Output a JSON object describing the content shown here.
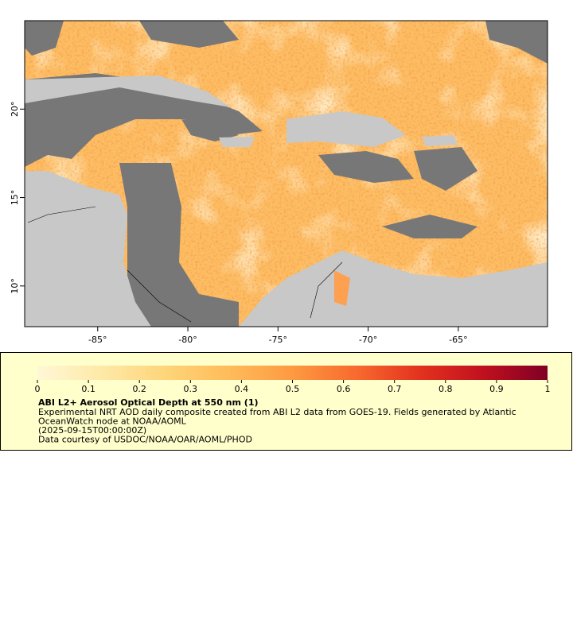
{
  "map": {
    "xaxis": {
      "lim": [
        -89.05,
        -60.05
      ],
      "ticks": [
        {
          "value": -85,
          "label": "-85°"
        },
        {
          "value": -80,
          "label": "-80°"
        },
        {
          "value": -75,
          "label": "-75°"
        },
        {
          "value": -70,
          "label": "-70°"
        },
        {
          "value": -65,
          "label": "-65°"
        }
      ]
    },
    "yaxis": {
      "lim": [
        7.7,
        25
      ],
      "ticks": [
        {
          "value": 10,
          "label": "10°"
        },
        {
          "value": 15,
          "label": "15°"
        },
        {
          "value": 20,
          "label": "20°"
        }
      ]
    }
  },
  "colorbar": {
    "lim": [
      0,
      1
    ],
    "ticks": [
      0,
      0.1,
      0.2,
      0.3,
      0.4,
      0.5,
      0.6,
      0.7,
      0.8,
      0.9,
      1
    ],
    "colors": [
      "#fff7d6",
      "#fee9a8",
      "#fed57a",
      "#febc5a",
      "#fd9a42",
      "#f86a2e",
      "#e3321e",
      "#c0101f",
      "#7f0025"
    ]
  },
  "legend": {
    "title": "ABI L2+ Aerosol Optical Depth at 550 nm (1)",
    "lines": [
      "Experimental NRT AOD daily composite created from ABI L2 data from GOES-19. Fields generated by Atlantic",
      "OceanWatch node at NOAA/AOML",
      "(2025-09-15T00:00:00Z)",
      "Data courtesy of USDOC/NOAA/OAR/AOML/PHOD"
    ]
  }
}
